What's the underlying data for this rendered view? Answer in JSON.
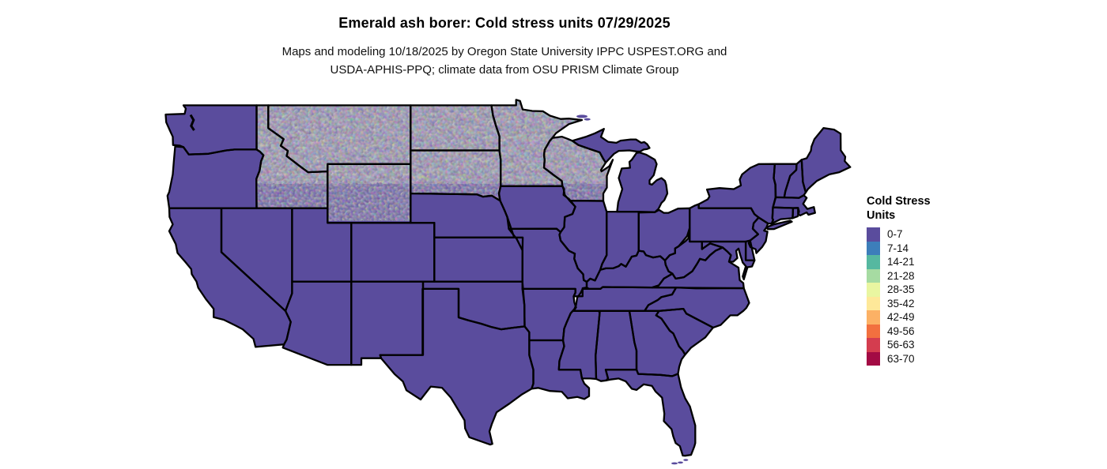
{
  "title": "Emerald ash borer: Cold stress units 07/29/2025",
  "subtitle": {
    "line1": "Maps and modeling 10/18/2025 by Oregon State University IPPC USPEST.ORG and",
    "line2": "USDA-APHIS-PPQ; climate data from OSU PRISM Climate Group"
  },
  "legend": {
    "title_line1": "Cold Stress",
    "title_line2": "Units",
    "bins": [
      {
        "label": "0-7",
        "color": "#5A4C9D"
      },
      {
        "label": "7-14",
        "color": "#3D7EBA"
      },
      {
        "label": "14-21",
        "color": "#56B8A0"
      },
      {
        "label": "21-28",
        "color": "#A6DBA2"
      },
      {
        "label": "28-35",
        "color": "#E9F6A1"
      },
      {
        "label": "35-42",
        "color": "#FEE899"
      },
      {
        "label": "42-49",
        "color": "#FCB165"
      },
      {
        "label": "49-56",
        "color": "#F2703F"
      },
      {
        "label": "56-63",
        "color": "#D43D4F"
      },
      {
        "label": "63-70",
        "color": "#A30B44"
      }
    ]
  },
  "map": {
    "region_label": "contiguous United States",
    "base_fill_bin": "0-7",
    "border_color": "#000000",
    "water_color": "#ffffff"
  }
}
